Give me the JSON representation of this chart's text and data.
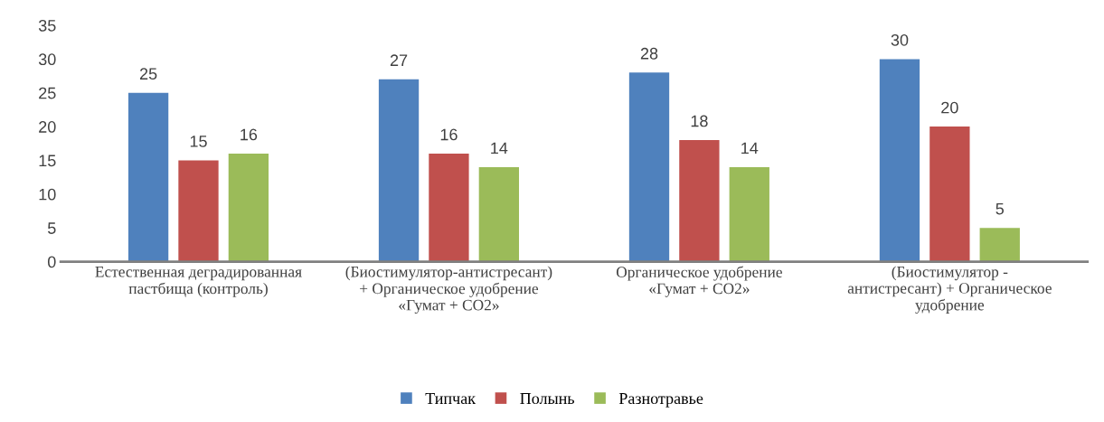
{
  "chart_data": {
    "type": "bar",
    "categories": [
      "Естественная деградированная\nпастбища (контроль)",
      "(Биостимулятор-антистресант)\n+ Органическое удобрение\n«Гумат + СО2»",
      "Органическое удобрение\n«Гумат + СО2»",
      "(Биостимулятор -\nантистресант) + Органическое\nудобрение"
    ],
    "series": [
      {
        "name": "Типчак",
        "color": "#4f81bd",
        "values": [
          25,
          27,
          28,
          30
        ]
      },
      {
        "name": "Полынь",
        "color": "#c0504d",
        "values": [
          15,
          16,
          18,
          20
        ]
      },
      {
        "name": "Разнотравье",
        "color": "#9bbb59",
        "values": [
          16,
          14,
          14,
          5
        ]
      }
    ],
    "ylim": [
      0,
      35
    ],
    "yticks": [
      0,
      5,
      10,
      15,
      20,
      25,
      30,
      35
    ],
    "data_labels": true,
    "grid": false,
    "legend": "bottom"
  }
}
